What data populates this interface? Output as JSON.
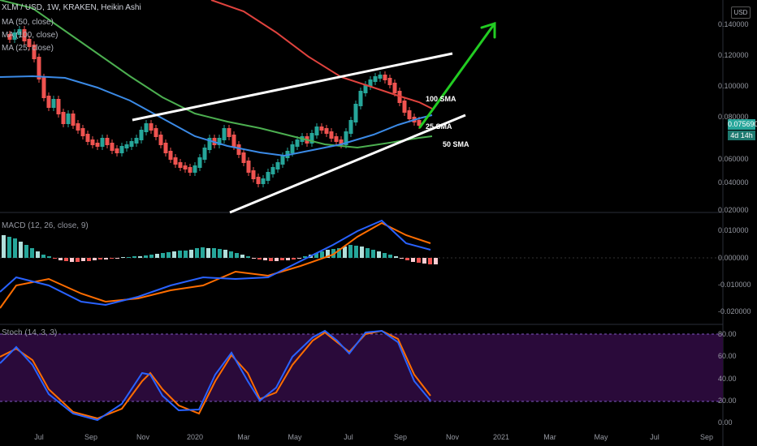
{
  "header": {
    "symbol": "XLM / USD, 1W, KRAKEN, Heikin Ashi",
    "ma_lines": [
      "MA (50, close)",
      "MA (100, close)",
      "MA (25, close)"
    ]
  },
  "currency_button": "USD",
  "price_axis": [
    "0.140000",
    "0.120000",
    "0.100000",
    "0.080000",
    "0.060000",
    "0.040000",
    "0.020000"
  ],
  "current_price": {
    "value": "0.075690",
    "countdown": "4d 14h",
    "color": "#26a69a"
  },
  "annotations": {
    "sma100": "100 SMA",
    "sma25": "25 SMA",
    "sma50": "50 SMA"
  },
  "macd": {
    "title": "MACD (12, 26, close, 9)",
    "axis": [
      "0.010000",
      "0.000000",
      "-0.010000",
      "-0.020000"
    ]
  },
  "stoch": {
    "title": "Stoch (14, 3, 3)",
    "axis": [
      "80.00",
      "60.00",
      "40.00",
      "20.00",
      "0.00"
    ]
  },
  "time_axis": [
    "Jul",
    "Sep",
    "Nov",
    "2020",
    "Mar",
    "May",
    "Jul",
    "Sep",
    "Nov",
    "2021",
    "Mar",
    "May",
    "Jul",
    "Sep"
  ],
  "colors": {
    "up": "#26a69a",
    "down": "#ef5350",
    "ma50": "#4caf50",
    "ma100": "#e0433e",
    "ma25": "#3b8ae6",
    "channel": "#ffffff",
    "arrow": "#22cc22",
    "macd_line": "#2962ff",
    "signal_line": "#ff6d00",
    "stoch_k": "#2962ff",
    "stoch_d": "#ff6d00",
    "stoch_band": "#2a0a3a"
  }
}
